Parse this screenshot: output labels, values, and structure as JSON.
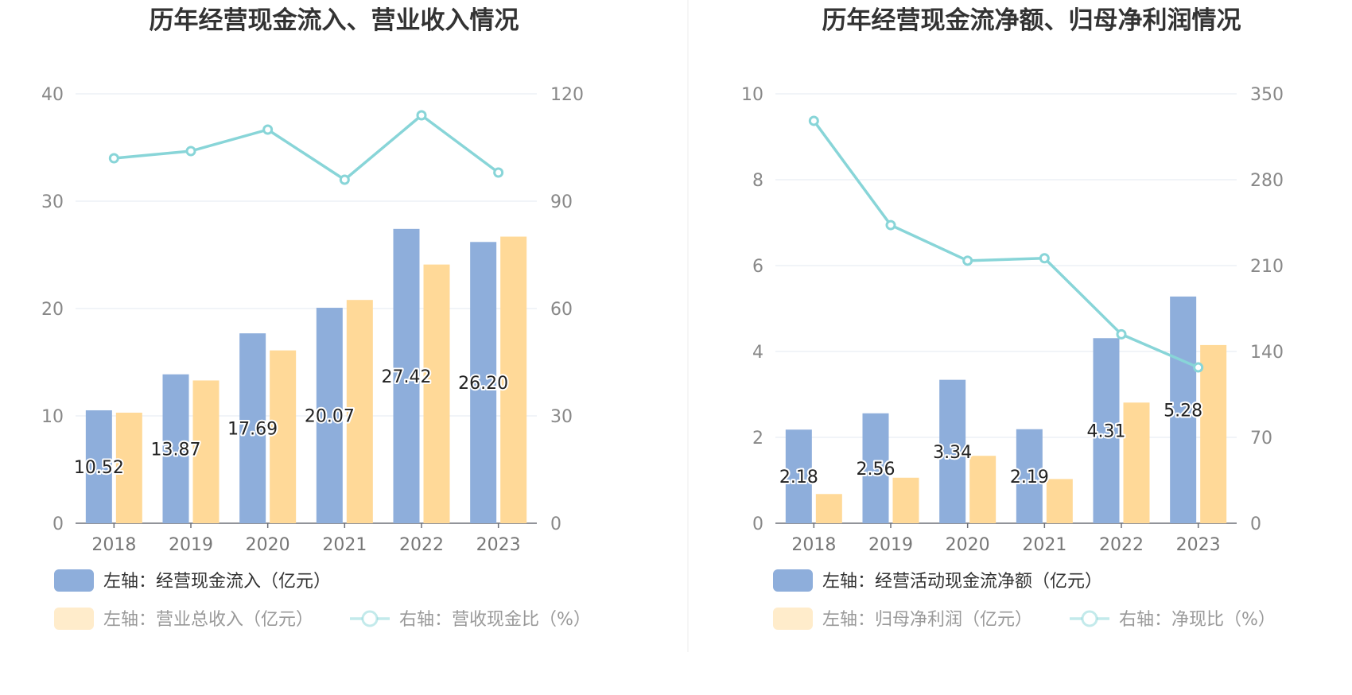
{
  "chart_data": [
    {
      "type": "bar",
      "title": "历年经营现金流入、营业收入情况",
      "categories": [
        "2018",
        "2019",
        "2020",
        "2021",
        "2022",
        "2023"
      ],
      "left_axis": {
        "min": 0,
        "max": 40,
        "ticks": [
          "0",
          "10",
          "20",
          "30",
          "40"
        ]
      },
      "right_axis": {
        "min": 0,
        "max": 120,
        "ticks": [
          "0",
          "30",
          "60",
          "90",
          "120"
        ]
      },
      "grid": true,
      "legend_position": "bottom",
      "series": [
        {
          "name": "左轴：经营现金流入（亿元）",
          "type": "bar",
          "axis": "left",
          "color": "#8eaedb",
          "values": [
            10.52,
            13.87,
            17.69,
            20.07,
            27.42,
            26.2
          ],
          "labels": [
            "10.52",
            "13.87",
            "17.69",
            "20.07",
            "27.42",
            "26.20"
          ]
        },
        {
          "name": "左轴：营业总收入（亿元）",
          "type": "bar",
          "axis": "left",
          "color": "#ffd998",
          "values": [
            10.3,
            13.3,
            16.1,
            20.8,
            24.1,
            26.7
          ]
        },
        {
          "name": "右轴：营收现金比（%）",
          "type": "line",
          "axis": "right",
          "color": "#88d5d8",
          "values": [
            102,
            104,
            110,
            96,
            114,
            98
          ]
        }
      ]
    },
    {
      "type": "bar",
      "title": "历年经营现金流净额、归母净利润情况",
      "categories": [
        "2018",
        "2019",
        "2020",
        "2021",
        "2022",
        "2023"
      ],
      "left_axis": {
        "min": 0,
        "max": 10,
        "ticks": [
          "0",
          "2",
          "4",
          "6",
          "8",
          "10"
        ]
      },
      "right_axis": {
        "min": 0,
        "max": 350,
        "ticks": [
          "0",
          "70",
          "140",
          "210",
          "280",
          "350"
        ]
      },
      "grid": true,
      "legend_position": "bottom",
      "series": [
        {
          "name": "左轴：经营活动现金流净额（亿元）",
          "type": "bar",
          "axis": "left",
          "color": "#8eaedb",
          "values": [
            2.18,
            2.56,
            3.34,
            2.19,
            4.31,
            5.28
          ],
          "labels": [
            "2.18",
            "2.56",
            "3.34",
            "2.19",
            "4.31",
            "5.28"
          ]
        },
        {
          "name": "左轴：归母净利润（亿元）",
          "type": "bar",
          "axis": "left",
          "color": "#ffd998",
          "values": [
            0.68,
            1.06,
            1.57,
            1.03,
            2.81,
            4.15
          ]
        },
        {
          "name": "右轴：净现比（%）",
          "type": "line",
          "axis": "right",
          "color": "#88d5d8",
          "values": [
            328,
            243,
            214,
            216,
            154,
            127
          ]
        }
      ]
    }
  ]
}
